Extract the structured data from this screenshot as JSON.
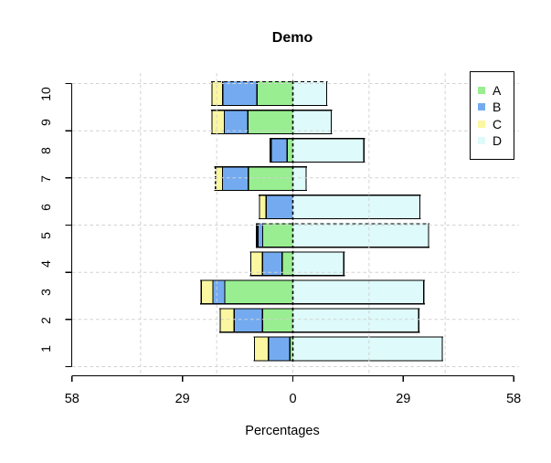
{
  "title": "Demo",
  "xlabel": "Percentages",
  "legend": {
    "position": "top-right",
    "items": [
      {
        "label": "A",
        "color": "#98EE90"
      },
      {
        "label": "B",
        "color": "#74ABF0"
      },
      {
        "label": "C",
        "color": "#FAF7A0"
      },
      {
        "label": "D",
        "color": "#DEFAFA"
      }
    ]
  },
  "chart_data": {
    "type": "bar",
    "subtype": "horizontal-diverging-stacked",
    "title": "Demo",
    "xlabel": "Percentages",
    "ylabel": "",
    "categories": [
      "10",
      "9",
      "8",
      "7",
      "6",
      "5",
      "4",
      "3",
      "2",
      "1"
    ],
    "row_order_note": "categories listed top-to-bottom as displayed; y tick labels read 1..10 bottom-to-top",
    "axis": {
      "x_tick_values": [
        -58,
        -29,
        0,
        29,
        58
      ],
      "x_tick_labels": [
        "58",
        "29",
        "0",
        "29",
        "58"
      ],
      "x_range": [
        -58,
        58
      ],
      "grid": true,
      "grid_x_units": [
        -40,
        -20,
        0,
        20,
        40
      ],
      "n_horizontal_gridlines": 7
    },
    "stack_order": {
      "left_of_zero_outward": [
        "A",
        "B",
        "C"
      ],
      "right_of_zero": [
        "D"
      ]
    },
    "series": [
      {
        "name": "A",
        "color": "#98EE90",
        "side": "left",
        "values": [
          9.4,
          11.8,
          1.5,
          11.7,
          0,
          7.9,
          2.8,
          17.9,
          8.0,
          0.8
        ]
      },
      {
        "name": "B",
        "color": "#74ABF0",
        "side": "left",
        "values": [
          9.0,
          6.2,
          4.5,
          6.8,
          7.0,
          1.6,
          5.2,
          3.1,
          7.4,
          5.6
        ]
      },
      {
        "name": "C",
        "color": "#FAF7A0",
        "side": "left",
        "values": [
          3.0,
          3.4,
          0,
          2.0,
          1.9,
          0,
          3.2,
          3.2,
          3.8,
          3.8
        ]
      },
      {
        "name": "D",
        "color": "#DEFAFA",
        "side": "right",
        "values": [
          9.0,
          10.2,
          18.8,
          3.6,
          33.5,
          35.8,
          13.5,
          34.5,
          33.2,
          39.4
        ]
      }
    ],
    "zero_reference_line": {
      "style": "dashed",
      "color": "#000000",
      "per_bar": true
    },
    "dashed_outline_rows": [
      {
        "category": "10",
        "edge": "top"
      },
      {
        "category": "7",
        "edge": "left"
      },
      {
        "category": "5",
        "edge": "top"
      }
    ],
    "colors": {
      "bar_border": "#000000",
      "gridline": "#D2D2D2",
      "axis": "#000000",
      "background": "#FFFFFF"
    }
  }
}
